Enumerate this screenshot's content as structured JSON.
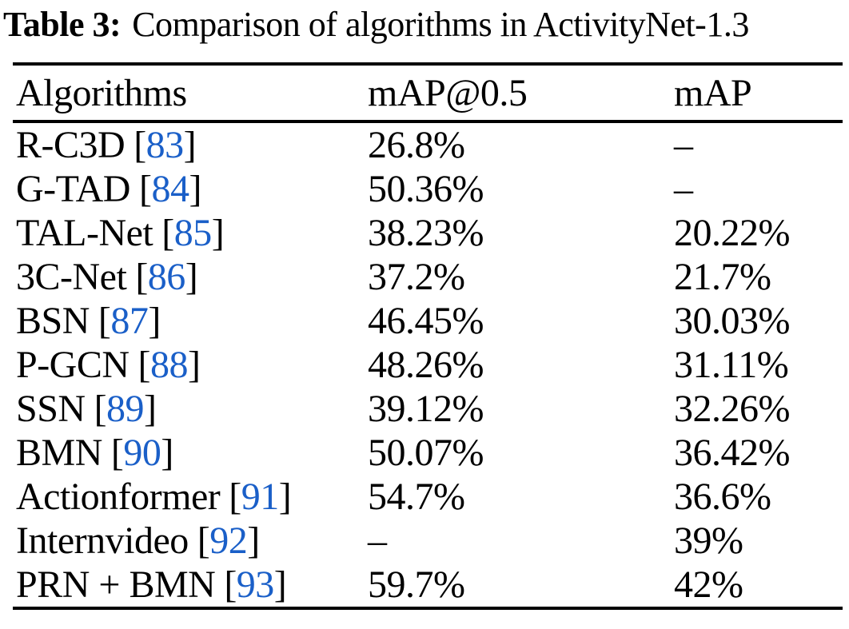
{
  "caption": {
    "label": "Table 3:",
    "text": "Comparison of algorithms in ActivityNet-1.3"
  },
  "citation": {
    "open": "[",
    "close": "]"
  },
  "colors": {
    "citation_blue": "#1A5FC8",
    "text": "#000000",
    "background": "#FFFFFF"
  },
  "table": {
    "columns": [
      "Algorithms",
      "mAP@0.5",
      "mAP"
    ],
    "rows": [
      {
        "algorithm": "R-C3D",
        "ref": "83",
        "map05": "26.8%",
        "map": "–"
      },
      {
        "algorithm": "G-TAD",
        "ref": "84",
        "map05": "50.36%",
        "map": "–"
      },
      {
        "algorithm": "TAL-Net",
        "ref": "85",
        "map05": "38.23%",
        "map": "20.22%"
      },
      {
        "algorithm": "3C-Net",
        "ref": "86",
        "map05": "37.2%",
        "map": "21.7%"
      },
      {
        "algorithm": "BSN",
        "ref": "87",
        "map05": "46.45%",
        "map": "30.03%"
      },
      {
        "algorithm": "P-GCN",
        "ref": "88",
        "map05": "48.26%",
        "map": "31.11%"
      },
      {
        "algorithm": "SSN",
        "ref": "89",
        "map05": "39.12%",
        "map": "32.26%"
      },
      {
        "algorithm": "BMN",
        "ref": "90",
        "map05": "50.07%",
        "map": "36.42%"
      },
      {
        "algorithm": "Actionformer",
        "ref": "91",
        "map05": "54.7%",
        "map": "36.6%"
      },
      {
        "algorithm": "Internvideo",
        "ref": "92",
        "map05": "–",
        "map": "39%"
      },
      {
        "algorithm": "PRN + BMN",
        "ref": "93",
        "map05": "59.7%",
        "map": "42%"
      }
    ]
  },
  "chart_data": {
    "type": "table",
    "title": "Table 3: Comparison of algorithms in ActivityNet-1.3",
    "columns": [
      "Algorithms",
      "mAP@0.5",
      "mAP"
    ],
    "rows": [
      [
        "R-C3D [83]",
        "26.8%",
        "–"
      ],
      [
        "G-TAD [84]",
        "50.36%",
        "–"
      ],
      [
        "TAL-Net [85]",
        "38.23%",
        "20.22%"
      ],
      [
        "3C-Net [86]",
        "37.2%",
        "21.7%"
      ],
      [
        "BSN [87]",
        "46.45%",
        "30.03%"
      ],
      [
        "P-GCN [88]",
        "48.26%",
        "31.11%"
      ],
      [
        "SSN [89]",
        "39.12%",
        "32.26%"
      ],
      [
        "BMN [90]",
        "50.07%",
        "36.42%"
      ],
      [
        "Actionformer [91]",
        "54.7%",
        "36.6%"
      ],
      [
        "Internvideo [92]",
        "–",
        "39%"
      ],
      [
        "PRN + BMN [93]",
        "59.7%",
        "42%"
      ]
    ]
  }
}
